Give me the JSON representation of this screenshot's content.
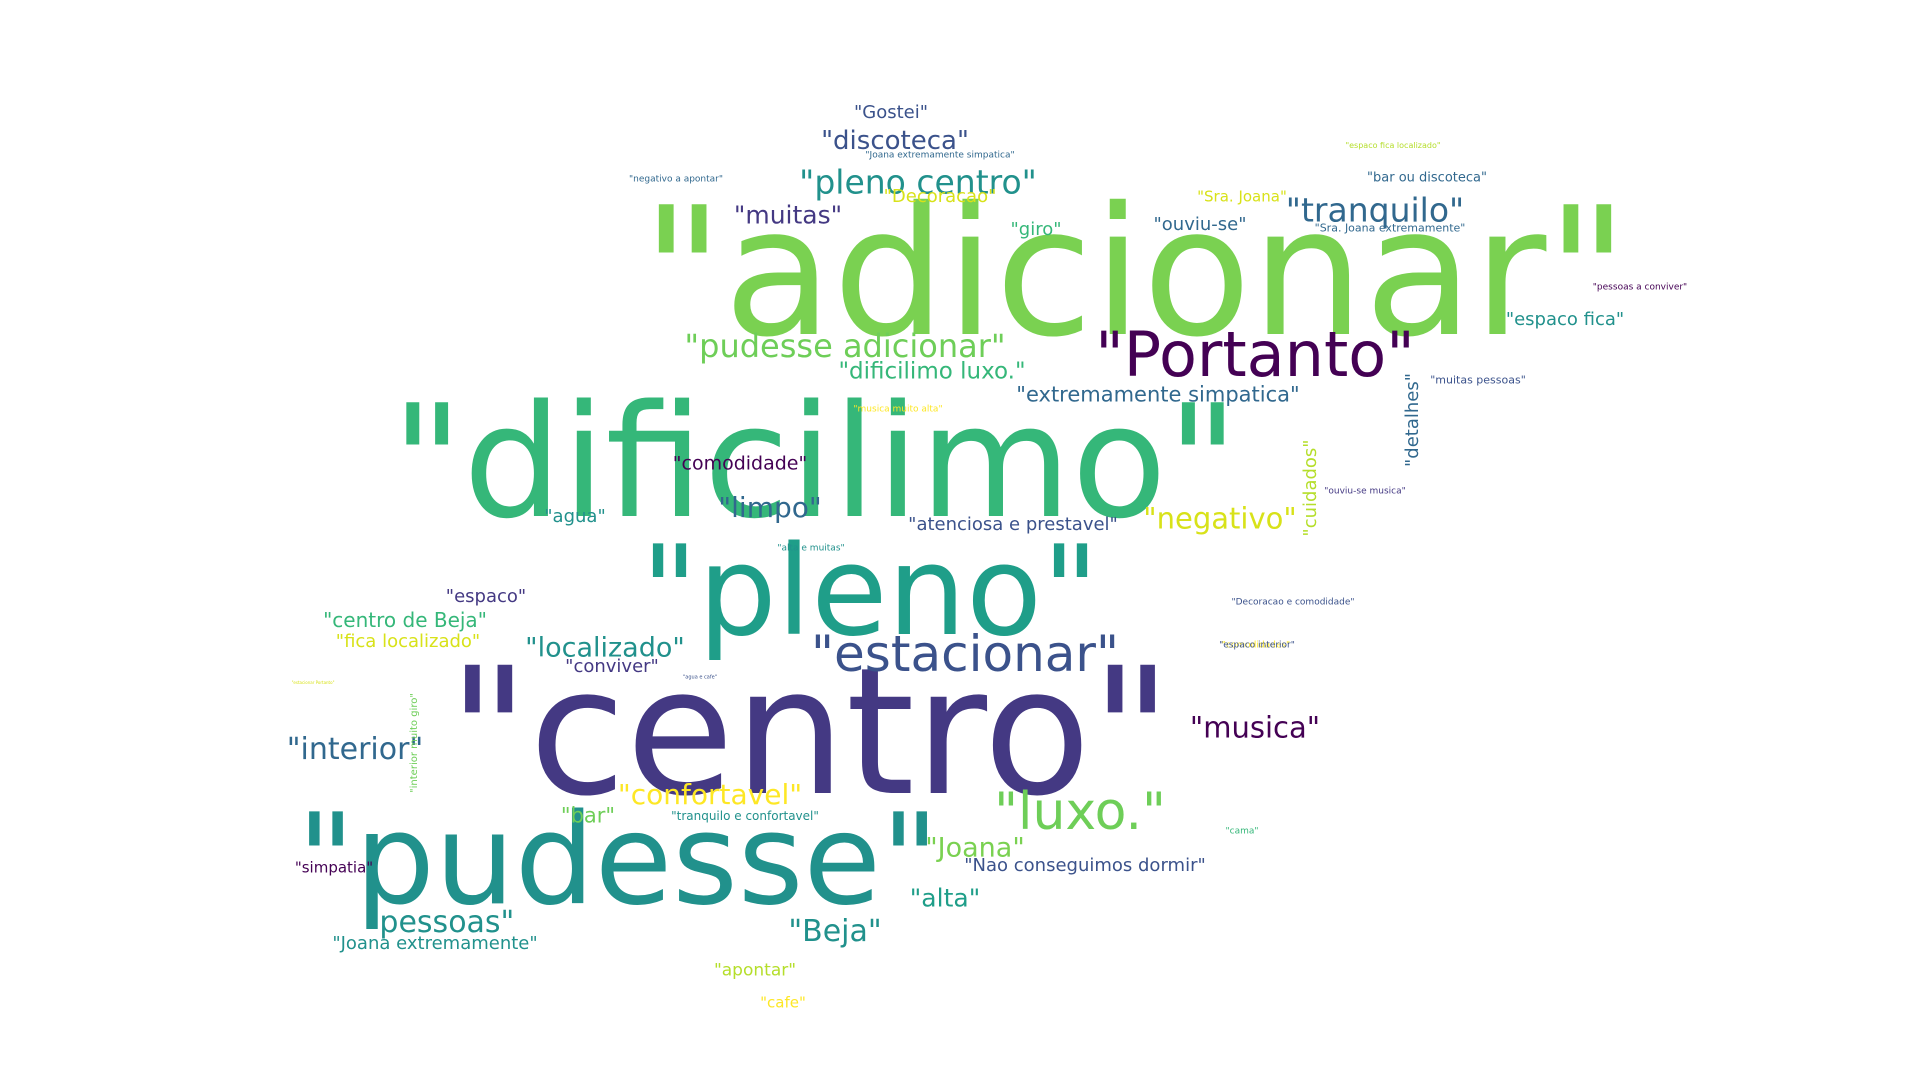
{
  "palette": {
    "background": "#ffffff",
    "dark_purple": "#440154",
    "indigo": "#3b528b",
    "blue_teal": "#31688e",
    "teal": "#21918c",
    "sea_green": "#1f9e89",
    "green": "#35b779",
    "light_green": "#6ece58",
    "lime": "#7ad151",
    "yellow": "#fde725",
    "gold": "#d8e219"
  },
  "words": [
    {
      "text": "\"adicionar\"",
      "color": "#7ad151"
    },
    {
      "text": "\"dificilimo\"",
      "color": "#35b779"
    },
    {
      "text": "\"centro\"",
      "color": "#443983"
    },
    {
      "text": "\"pleno\"",
      "color": "#1f9e89"
    },
    {
      "text": "\"pudesse\"",
      "color": "#21918c"
    },
    {
      "text": "\"Portanto\"",
      "color": "#440154"
    },
    {
      "text": "\"estacionar\"",
      "color": "#3b528b"
    },
    {
      "text": "\"luxo.\"",
      "color": "#6ece58"
    },
    {
      "text": "\"pudesse adicionar\"",
      "color": "#6ece58"
    },
    {
      "text": "\"pleno centro\"",
      "color": "#21918c"
    },
    {
      "text": "\"tranquilo\"",
      "color": "#31688e"
    },
    {
      "text": "\"musica\"",
      "color": "#440154"
    },
    {
      "text": "\"limpo\"",
      "color": "#31688e"
    },
    {
      "text": "\"localizado\"",
      "color": "#21918c"
    },
    {
      "text": "\"interior\"",
      "color": "#31688e"
    },
    {
      "text": "\"negativo\"",
      "color": "#d8e219"
    },
    {
      "text": "\"confortavel\"",
      "color": "#fde725"
    },
    {
      "text": "\"Beja\"",
      "color": "#21918c"
    },
    {
      "text": "\"pessoas\"",
      "color": "#21918c"
    },
    {
      "text": "\"Joana\"",
      "color": "#7ad151"
    },
    {
      "text": "\"alta\"",
      "color": "#1f9e89"
    },
    {
      "text": "\"discoteca\"",
      "color": "#3b528b"
    },
    {
      "text": "\"muitas\"",
      "color": "#443983"
    },
    {
      "text": "\"dificilimo luxo.\"",
      "color": "#35b779"
    },
    {
      "text": "\"extremamente simpatica\"",
      "color": "#31688e"
    },
    {
      "text": "\"atenciosa e prestavel\"",
      "color": "#3b528b"
    },
    {
      "text": "\"comodidade\"",
      "color": "#440154"
    },
    {
      "text": "\"Nao conseguimos dormir\"",
      "color": "#3b528b"
    },
    {
      "text": "\"bar\"",
      "color": "#6ece58"
    },
    {
      "text": "\"conviver\"",
      "color": "#443983"
    },
    {
      "text": "\"espaco\"",
      "color": "#443983"
    },
    {
      "text": "\"centro de Beja\"",
      "color": "#35b779"
    },
    {
      "text": "\"fica localizado\"",
      "color": "#d8e219"
    },
    {
      "text": "\"giro\"",
      "color": "#35b779"
    },
    {
      "text": "\"Decoracao\"",
      "color": "#d8e219"
    },
    {
      "text": "\"espaco fica\"",
      "color": "#21918c"
    },
    {
      "text": "\"ouviu-se\"",
      "color": "#31688e"
    },
    {
      "text": "\"Sra. Joana\"",
      "color": "#d8e219"
    },
    {
      "text": "\"agua\"",
      "color": "#21918c"
    },
    {
      "text": "\"apontar\"",
      "color": "#b5de2b"
    },
    {
      "text": "\"Joana extremamente\"",
      "color": "#21918c"
    },
    {
      "text": "\"cafe\"",
      "color": "#fde725"
    },
    {
      "text": "\"simpatia\"",
      "color": "#440154"
    },
    {
      "text": "\"Gostei\"",
      "color": "#3b528b"
    },
    {
      "text": "\"bar ou discoteca\"",
      "color": "#31688e"
    },
    {
      "text": "\"tranquilo e confortavel\"",
      "color": "#21918c"
    },
    {
      "text": "\"Sra. Joana extremamente\"",
      "color": "#31688e"
    },
    {
      "text": "\"muitas pessoas\"",
      "color": "#3b528b"
    },
    {
      "text": "\"comodidades\"",
      "color": "#fde725"
    },
    {
      "text": "\"espaco interior\"",
      "color": "#3b528b"
    },
    {
      "text": "\"pessoas a conviver\"",
      "color": "#440154"
    },
    {
      "text": "\"Decoracao e comodidade\"",
      "color": "#3b528b"
    },
    {
      "text": "\"cama\"",
      "color": "#35b779"
    },
    {
      "text": "\"Joana extremamente simpatica\"",
      "color": "#31688e"
    },
    {
      "text": "\"ouviu-se musica\"",
      "color": "#443983"
    },
    {
      "text": "\"alta e muitas\"",
      "color": "#21918c"
    },
    {
      "text": "\"musica muito alta\"",
      "color": "#fde725"
    },
    {
      "text": "\"negativo a apontar\"",
      "color": "#31688e"
    },
    {
      "text": "\"espaco fica localizado\"",
      "color": "#b5de2b"
    },
    {
      "text": "\"agua e cafe\"",
      "color": "#3b528b"
    },
    {
      "text": "\"estacionar Portanto\"",
      "color": "#d8e219"
    },
    {
      "text": "\"detalhes\"",
      "color": "#31688e"
    },
    {
      "text": "\"cuidados\"",
      "color": "#b5de2b"
    },
    {
      "text": "\"interior muito giro\"",
      "color": "#6ece58"
    }
  ]
}
